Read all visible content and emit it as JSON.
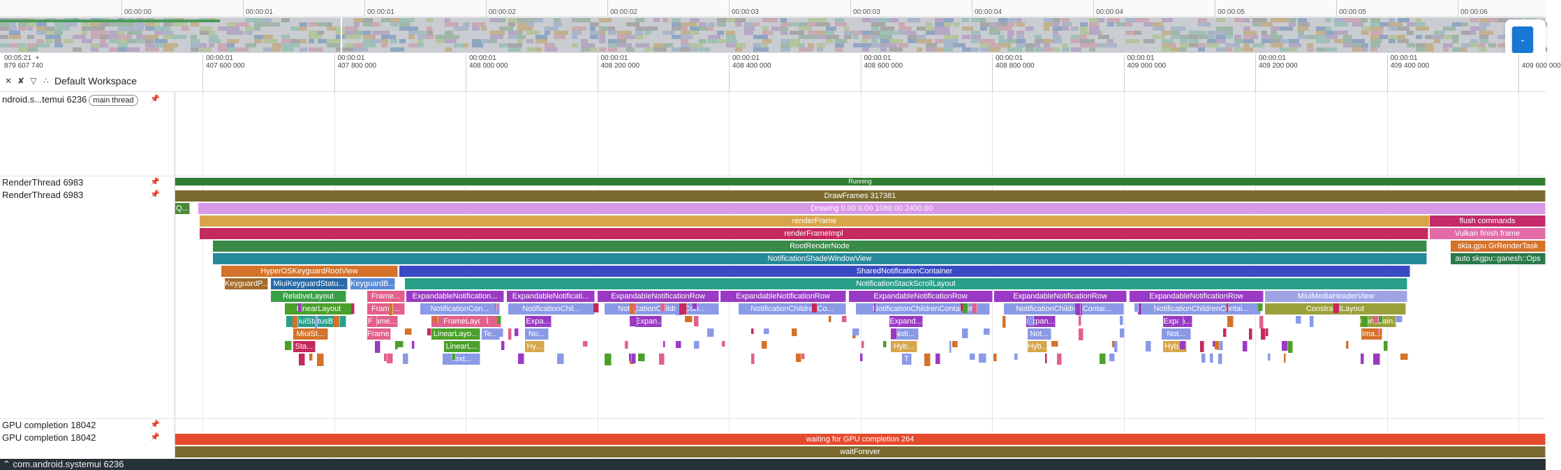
{
  "overview": {
    "ticks": [
      "00:00:00",
      "00:00:01",
      "00:00:01",
      "00:00:02",
      "00:00:02",
      "00:00:03",
      "00:00:03",
      "00:00:04",
      "00:00:04",
      "00:00:05",
      "00:00:05",
      "00:00:06"
    ],
    "expand_button": "-"
  },
  "timebar": {
    "origin_time": "00:05:21",
    "origin_plus": "+",
    "origin_ns": "879 607 740",
    "ticks": [
      [
        "00:00:01",
        "407 600 000"
      ],
      [
        "00:00:01",
        "407 800 000"
      ],
      [
        "00:00:01",
        "408 000 000"
      ],
      [
        "00:00:01",
        "408 200 000"
      ],
      [
        "00:00:01",
        "408 400 000"
      ],
      [
        "00:00:01",
        "408 600 000"
      ],
      [
        "00:00:01",
        "408 800 000"
      ],
      [
        "00:00:01",
        "409 000 000"
      ],
      [
        "00:00:01",
        "409 200 000"
      ],
      [
        "00:00:01",
        "409 400 000"
      ],
      [
        "",
        "409 600 000"
      ]
    ],
    "workspace_label": "Default Workspace",
    "icons": [
      "collapse-all-icon",
      "unpin-icon",
      "filter-icon",
      "workspace-icon"
    ]
  },
  "tracks": {
    "main_thread_name": "ndroid.s...temui 6236",
    "main_thread_badge": "main thread",
    "render_state_name": "RenderThread 6983",
    "render_name": "RenderThread 6983",
    "gpu_state_name": "GPU completion 18042",
    "gpu_name": "GPU completion 18042",
    "render_state_slice": "Running",
    "gpu_slices": [
      "waiting for GPU completion 264",
      "waitForever"
    ]
  },
  "flame": {
    "rows": [
      [
        [
          "DrawFrames 317381",
          "#7a6a2e"
        ]
      ],
      [
        [
          "Q...",
          "#4a8a3a"
        ],
        [
          "Drawing  0.00  0.00 1080.00 2400.00",
          "#d899e6"
        ]
      ],
      [
        [
          "renderFrame",
          "#d8a64a"
        ],
        [
          "flush commands",
          "#c42a6a"
        ]
      ],
      [
        [
          "renderFrameImpl",
          "#c42a5c"
        ],
        [
          "Vulkan finish frame",
          "#e26aa6"
        ]
      ],
      [
        [
          "RootRenderNode",
          "#3a8a48"
        ],
        [
          "skia.gpu GrRenderTask",
          "#d4722a"
        ]
      ],
      [
        [
          "NotificationShadeWindowView",
          "#268a9a"
        ],
        [
          "auto skgpu::ganesh::Ops",
          "#2a7a4a"
        ]
      ],
      [
        [
          "HyperOSKeyguardRootView",
          "#d4722a"
        ],
        [
          "SharedNotificationContainer",
          "#3a4ac4"
        ]
      ],
      [
        [
          "KeyguardP...",
          "#a46a2a"
        ],
        [
          "MiuiKeyguardStatu...",
          "#2a6aa4"
        ],
        [
          "KeyguardB...",
          "#5a8ad4"
        ],
        [
          "NotificationStackScrollLayout",
          "#28a08a"
        ]
      ],
      [
        [
          "RelativeLayout",
          "#3aa046"
        ],
        [
          "Frame...",
          "#e2608a"
        ],
        [
          "ExpandableNotification...",
          "#9a3ac4"
        ],
        [
          "ExpandableNotificati...",
          "#9a3ac4"
        ],
        [
          "ExpandableNotificationRow",
          "#9a3ac4"
        ],
        [
          "ExpandableNotificationRow",
          "#9a3ac4"
        ],
        [
          "ExpandableNotificationRow",
          "#9a3ac4"
        ],
        [
          "ExpandableNotificationRow",
          "#9a3ac4"
        ],
        [
          "ExpandableNotificationRow",
          "#9a3ac4"
        ],
        [
          "MiuiMediaHeaderView",
          "#a0a4e6"
        ]
      ],
      [
        [
          "LinearLayout",
          "#4aa02a"
        ],
        [
          "Frame...",
          "#e2608a"
        ],
        [
          "NotificationCon...",
          "#8a9ae6"
        ],
        [
          "NotificationChil...",
          "#8a9ae6"
        ],
        [
          "NotificationChildrenCon...",
          "#8a9ae6"
        ],
        [
          "NotificationChildrenCo...",
          "#8a9ae6"
        ],
        [
          "NotificationChildrenContainer",
          "#8a9ae6"
        ],
        [
          "NotificationChildrenContai...",
          "#8a9ae6"
        ],
        [
          "NotificationChildrenContai...",
          "#8a9ae6"
        ],
        [
          "ConstraintLayout",
          "#9aa03a"
        ]
      ],
      [
        [
          "MiuiStatusB...",
          "#28a08a"
        ],
        [
          "Frame...",
          "#e2608a"
        ],
        [
          "FrameLayout",
          "#e2608a"
        ],
        [
          "Expa...",
          "#9a3ac4"
        ],
        [
          "Expan...",
          "#9a3ac4"
        ],
        [
          "Expand...",
          "#9a3ac4"
        ],
        [
          "Expan...",
          "#9a3ac4"
        ],
        [
          "Expan...",
          "#9a3ac4"
        ],
        [
          "Constrain...",
          "#9aa03a"
        ]
      ],
      [
        [
          "MiuiSt...",
          "#d4722a"
        ],
        [
          "Frame...",
          "#e2608a"
        ],
        [
          "LinearLayo...",
          "#4aa02a"
        ],
        [
          "Te...",
          "#8a9ae6"
        ],
        [
          "No...",
          "#8a9ae6"
        ],
        [
          "Noti...",
          "#8a9ae6"
        ],
        [
          "Not...",
          "#8a9ae6"
        ],
        [
          "Not...",
          "#8a9ae6"
        ],
        [
          "Ima...",
          "#d4722a"
        ]
      ],
      [
        [
          "Sta...",
          "#c42a5c"
        ],
        [
          "LinearL...",
          "#4aa02a"
        ],
        [
          "Hy...",
          "#d8a64a"
        ],
        [
          "Hyb...",
          "#d8a64a"
        ],
        [
          "Hyb...",
          "#d8a64a"
        ],
        [
          "Hyb...",
          "#d8a64a"
        ]
      ],
      [
        [
          "Text...",
          "#8a9ae6"
        ],
        [
          "T",
          "#8a9ae6"
        ]
      ]
    ]
  }
}
